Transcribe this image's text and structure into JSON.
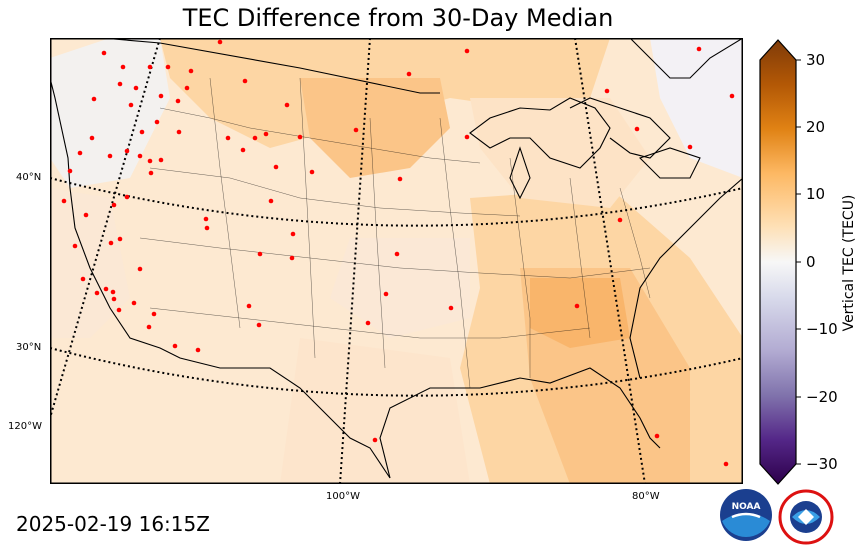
{
  "title": "TEC Difference from 30-Day Median",
  "colorbar": {
    "label": "Vertical TEC (TECU)",
    "ticks": [
      "30",
      "20",
      "10",
      "0",
      "−10",
      "−20",
      "−30"
    ],
    "min": -30,
    "max": 30,
    "positive_color": "#8a4a06",
    "negative_color": "#2d0a4e",
    "neutral_color": "#f7f7f7"
  },
  "graticule": {
    "latitude_labels": [
      "40°N",
      "30°N"
    ],
    "longitude_labels": [
      "120°W",
      "100°W",
      "80°W"
    ]
  },
  "timestamp": "2025-02-19 16:15Z",
  "logos": {
    "noaa": "NOAA",
    "nws": "NATIONAL WEATHER SERVICE"
  },
  "map_colors": {
    "background_light": "#fde9d0",
    "mid_orange": "#fdd6a4",
    "strong_orange": "#fbbf7a",
    "stations": "#ff0000"
  }
}
